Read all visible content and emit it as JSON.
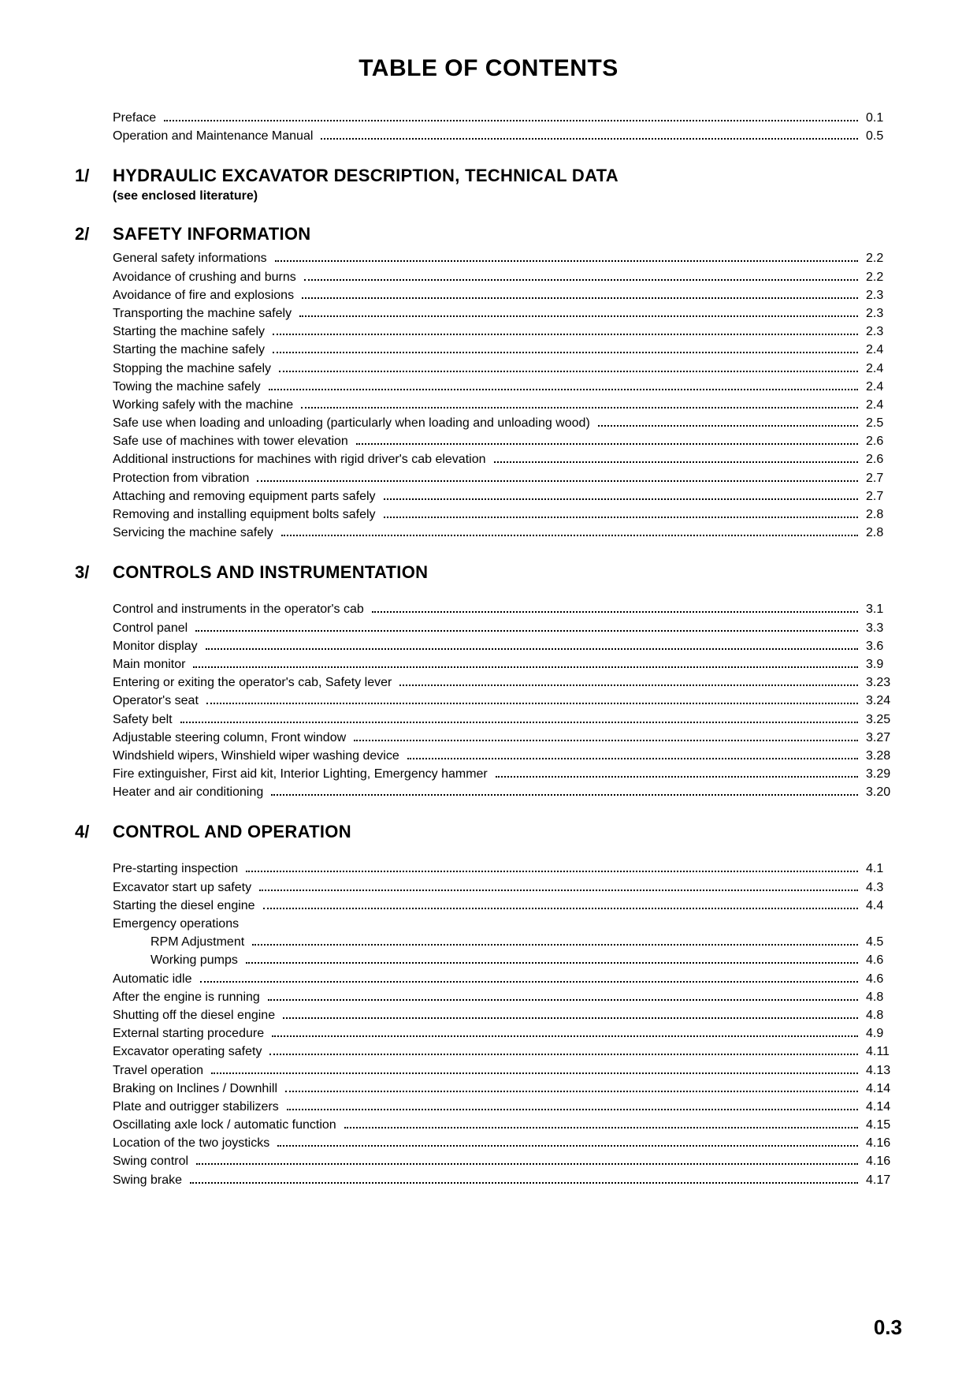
{
  "page": {
    "title": "TABLE OF CONTENTS",
    "number": "0.3",
    "background": "#ffffff",
    "text_color": "#000000",
    "title_fontsize": 30,
    "section_title_fontsize": 22,
    "entry_fontsize": 16,
    "page_number_fontsize": 26
  },
  "front_matter": [
    {
      "label": "Preface",
      "page": "0.1"
    },
    {
      "label": "Operation and Maintenance Manual",
      "page": "0.5"
    }
  ],
  "sections": [
    {
      "num": "1/",
      "title": "HYDRAULIC EXCAVATOR DESCRIPTION, TECHNICAL DATA",
      "note": "(see enclosed literature)",
      "entries": []
    },
    {
      "num": "2/",
      "title": "SAFETY INFORMATION",
      "entries": [
        {
          "label": "General safety informations",
          "page": "2.2"
        },
        {
          "label": "Avoidance of crushing and burns",
          "page": "2.2"
        },
        {
          "label": "Avoidance of fire and explosions",
          "page": "2.3"
        },
        {
          "label": "Transporting the machine safely",
          "page": "2.3"
        },
        {
          "label": "Starting the machine safely",
          "page": "2.3"
        },
        {
          "label": "Starting the machine safely",
          "page": "2.4"
        },
        {
          "label": "Stopping the machine safely",
          "page": "2.4"
        },
        {
          "label": "Towing the machine safely",
          "page": "2.4"
        },
        {
          "label": "Working safely with the machine",
          "page": "2.4"
        },
        {
          "label": "Safe use when loading and unloading (particularly when loading and unloading wood)",
          "page": "2.5"
        },
        {
          "label": "Safe use of machines with tower elevation",
          "page": "2.6"
        },
        {
          "label": "Additional instructions for machines with rigid driver's cab elevation",
          "page": "2.6"
        },
        {
          "label": "Protection from vibration",
          "page": "2.7"
        },
        {
          "label": "Attaching and removing equipment parts safely",
          "page": "2.7"
        },
        {
          "label": "Removing and installing equipment bolts safely",
          "page": "2.8"
        },
        {
          "label": "Servicing the machine safely",
          "page": "2.8"
        }
      ]
    },
    {
      "num": "3/",
      "title": "CONTROLS AND INSTRUMENTATION",
      "gap_before_entries": true,
      "entries": [
        {
          "label": "Control and instruments in the operator's cab",
          "page": "3.1"
        },
        {
          "label": "Control panel",
          "page": "3.3"
        },
        {
          "label": "Monitor display",
          "page": "3.6"
        },
        {
          "label": "Main monitor",
          "page": "3.9"
        },
        {
          "label": "Entering or exiting the operator's cab, Safety lever",
          "page": "3.23"
        },
        {
          "label": "Operator's seat",
          "page": "3.24"
        },
        {
          "label": "Safety belt",
          "page": "3.25"
        },
        {
          "label": "Adjustable steering column, Front window",
          "page": "3.27"
        },
        {
          "label": "Windshield wipers, Winshield wiper washing device",
          "page": "3.28"
        },
        {
          "label": "Fire extinguisher, First aid kit, Interior Lighting, Emergency hammer",
          "page": "3.29"
        },
        {
          "label": "Heater and air conditioning",
          "page": "3.20"
        }
      ]
    },
    {
      "num": "4/",
      "title": "CONTROL AND OPERATION",
      "gap_before_entries": true,
      "entries": [
        {
          "label": "Pre-starting inspection",
          "page": "4.1"
        },
        {
          "label": "Excavator start up safety",
          "page": "4.3"
        },
        {
          "label": "Starting the diesel engine",
          "page": "4.4"
        },
        {
          "label": "Emergency operations",
          "nopage": true
        },
        {
          "label": "RPM Adjustment",
          "page": "4.5",
          "sub": true
        },
        {
          "label": "Working pumps",
          "page": "4.6",
          "sub": true
        },
        {
          "label": "Automatic idle",
          "page": "4.6"
        },
        {
          "label": "After the engine is running",
          "page": "4.8"
        },
        {
          "label": "Shutting off the diesel engine",
          "page": "4.8"
        },
        {
          "label": "External starting procedure",
          "page": "4.9"
        },
        {
          "label": "Excavator operating safety",
          "page": "4.11"
        },
        {
          "label": "Travel  operation",
          "page": "4.13"
        },
        {
          "label": "Braking on Inclines / Downhill",
          "page": "4.14"
        },
        {
          "label": "Plate and outrigger stabilizers",
          "page": "4.14"
        },
        {
          "label": "Oscillating axle lock / automatic function",
          "page": "4.15"
        },
        {
          "label": "Location of the two joysticks",
          "page": "4.16"
        },
        {
          "label": "Swing control",
          "page": "4.16"
        },
        {
          "label": "Swing brake",
          "page": "4.17"
        }
      ]
    }
  ]
}
